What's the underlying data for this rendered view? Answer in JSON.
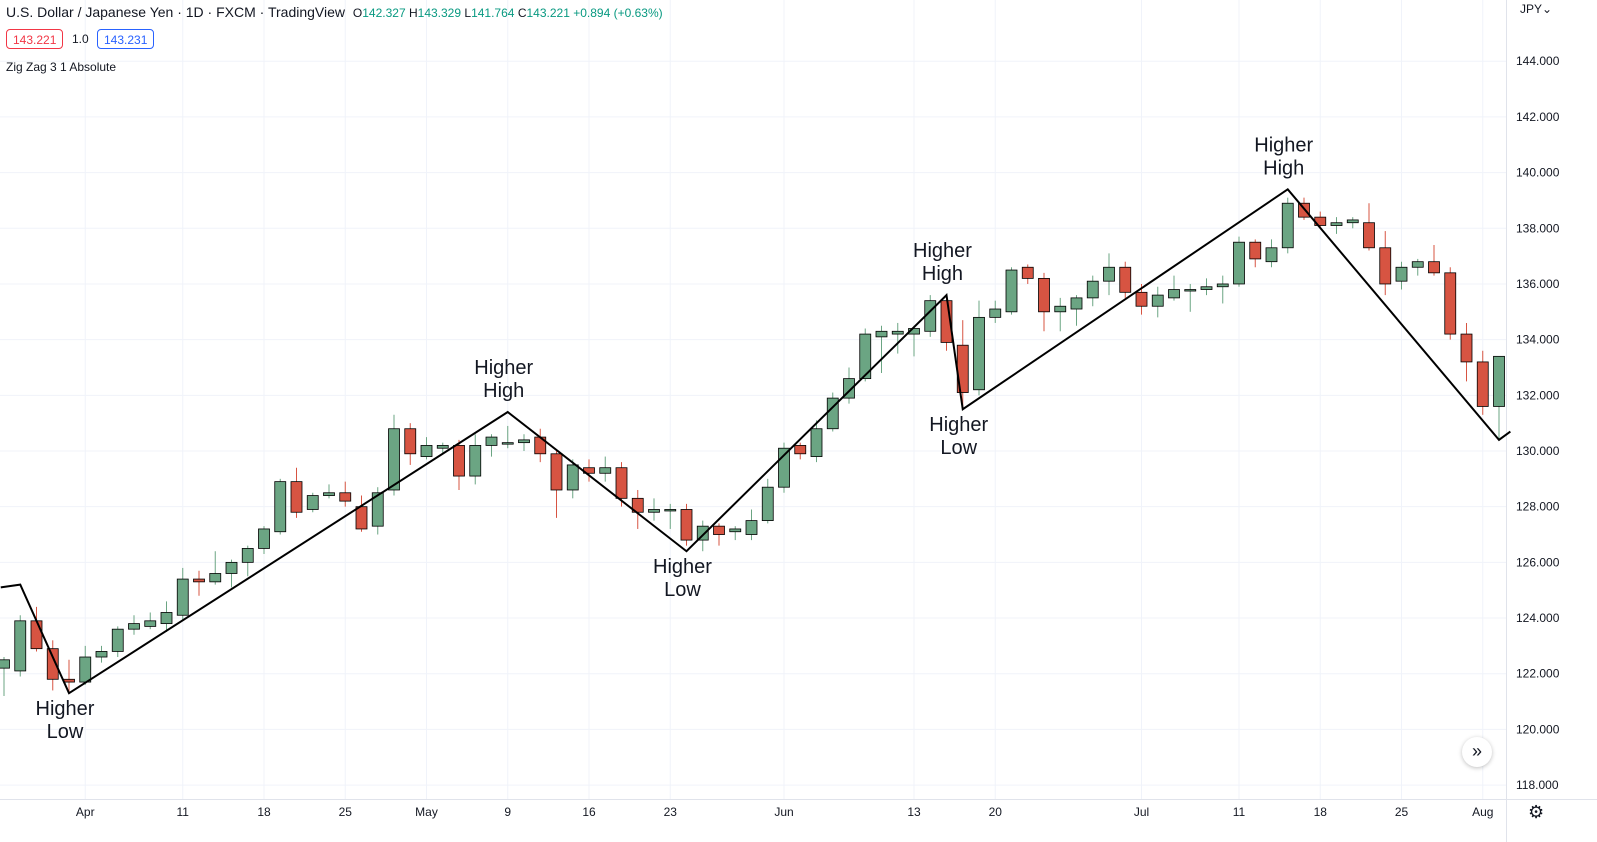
{
  "legend": {
    "symbol": "U.S. Dollar / Japanese Yen · 1D · FXCM · TradingView",
    "open_label": "O",
    "open": "142.327",
    "high_label": "H",
    "high": "143.329",
    "low_label": "L",
    "low": "141.764",
    "close_label": "C",
    "close": "143.221",
    "change": "+0.894 (+0.63%)",
    "bid": "143.221",
    "spread": "1.0",
    "ask": "143.231",
    "indicator": "Zig Zag 3 1 Absolute"
  },
  "axis": {
    "currency": "JPY"
  },
  "colors": {
    "up": "#6ba583",
    "down": "#d75442",
    "zigzag": "#000000",
    "grid": "#f0f3fa"
  },
  "icons": {
    "scroll": "double-chevron-right-icon",
    "settings": "gear-icon"
  },
  "chart_data": {
    "type": "candlestick",
    "ylim": [
      117.5,
      146.2
    ],
    "y_ticks": [
      "118.000",
      "120.000",
      "122.000",
      "124.000",
      "126.000",
      "128.000",
      "130.000",
      "132.000",
      "134.000",
      "136.000",
      "138.000",
      "140.000",
      "142.000",
      "144.000"
    ],
    "y_tick_values": [
      118,
      120,
      122,
      124,
      126,
      128,
      130,
      132,
      134,
      136,
      138,
      140,
      142,
      144
    ],
    "x_ticks": [
      {
        "label": "Apr",
        "index": 5
      },
      {
        "label": "11",
        "index": 11
      },
      {
        "label": "18",
        "index": 16
      },
      {
        "label": "25",
        "index": 21
      },
      {
        "label": "May",
        "index": 26
      },
      {
        "label": "9",
        "index": 31
      },
      {
        "label": "16",
        "index": 36
      },
      {
        "label": "23",
        "index": 41
      },
      {
        "label": "Jun",
        "index": 48
      },
      {
        "label": "13",
        "index": 56
      },
      {
        "label": "20",
        "index": 61
      },
      {
        "label": "Jul",
        "index": 70
      },
      {
        "label": "11",
        "index": 76
      },
      {
        "label": "18",
        "index": 81
      },
      {
        "label": "25",
        "index": 86
      },
      {
        "label": "Aug",
        "index": 91
      }
    ],
    "candles": [
      {
        "o": 122.2,
        "h": 122.6,
        "l": 121.2,
        "c": 122.5
      },
      {
        "o": 122.1,
        "h": 124.1,
        "l": 121.9,
        "c": 123.9
      },
      {
        "o": 123.9,
        "h": 124.4,
        "l": 122.8,
        "c": 122.9
      },
      {
        "o": 122.9,
        "h": 123.2,
        "l": 121.4,
        "c": 121.8
      },
      {
        "o": 121.8,
        "h": 122.5,
        "l": 121.3,
        "c": 121.7
      },
      {
        "o": 121.7,
        "h": 123.0,
        "l": 121.6,
        "c": 122.6
      },
      {
        "o": 122.6,
        "h": 123.0,
        "l": 122.4,
        "c": 122.8
      },
      {
        "o": 122.8,
        "h": 123.7,
        "l": 122.6,
        "c": 123.6
      },
      {
        "o": 123.6,
        "h": 124.1,
        "l": 123.4,
        "c": 123.8
      },
      {
        "o": 123.7,
        "h": 124.2,
        "l": 123.6,
        "c": 123.9
      },
      {
        "o": 123.8,
        "h": 124.6,
        "l": 123.5,
        "c": 124.2
      },
      {
        "o": 124.1,
        "h": 125.8,
        "l": 123.9,
        "c": 125.4
      },
      {
        "o": 125.4,
        "h": 125.7,
        "l": 124.8,
        "c": 125.3
      },
      {
        "o": 125.3,
        "h": 126.4,
        "l": 125.2,
        "c": 125.6
      },
      {
        "o": 125.6,
        "h": 126.1,
        "l": 125.1,
        "c": 126.0
      },
      {
        "o": 126.0,
        "h": 126.6,
        "l": 125.5,
        "c": 126.5
      },
      {
        "o": 126.5,
        "h": 127.3,
        "l": 126.3,
        "c": 127.2
      },
      {
        "o": 127.1,
        "h": 129.0,
        "l": 127.0,
        "c": 128.9
      },
      {
        "o": 128.9,
        "h": 129.4,
        "l": 127.6,
        "c": 127.8
      },
      {
        "o": 127.9,
        "h": 128.5,
        "l": 127.8,
        "c": 128.4
      },
      {
        "o": 128.4,
        "h": 128.8,
        "l": 128.3,
        "c": 128.5
      },
      {
        "o": 128.5,
        "h": 128.9,
        "l": 128.0,
        "c": 128.2
      },
      {
        "o": 128.0,
        "h": 128.4,
        "l": 127.1,
        "c": 127.2
      },
      {
        "o": 127.3,
        "h": 128.7,
        "l": 127.0,
        "c": 128.5
      },
      {
        "o": 128.6,
        "h": 131.3,
        "l": 128.4,
        "c": 130.8
      },
      {
        "o": 130.8,
        "h": 131.0,
        "l": 129.5,
        "c": 129.9
      },
      {
        "o": 129.8,
        "h": 130.5,
        "l": 129.7,
        "c": 130.2
      },
      {
        "o": 130.1,
        "h": 130.3,
        "l": 129.9,
        "c": 130.2
      },
      {
        "o": 130.2,
        "h": 130.4,
        "l": 128.6,
        "c": 129.1
      },
      {
        "o": 129.1,
        "h": 130.6,
        "l": 128.8,
        "c": 130.2
      },
      {
        "o": 130.2,
        "h": 130.6,
        "l": 129.8,
        "c": 130.5
      },
      {
        "o": 130.3,
        "h": 130.9,
        "l": 130.1,
        "c": 130.3
      },
      {
        "o": 130.3,
        "h": 130.6,
        "l": 130.0,
        "c": 130.4
      },
      {
        "o": 130.5,
        "h": 130.8,
        "l": 129.6,
        "c": 129.9
      },
      {
        "o": 129.9,
        "h": 130.0,
        "l": 127.6,
        "c": 128.6
      },
      {
        "o": 128.6,
        "h": 129.7,
        "l": 128.3,
        "c": 129.5
      },
      {
        "o": 129.4,
        "h": 129.7,
        "l": 128.9,
        "c": 129.2
      },
      {
        "o": 129.2,
        "h": 129.8,
        "l": 128.9,
        "c": 129.4
      },
      {
        "o": 129.4,
        "h": 129.6,
        "l": 128.0,
        "c": 128.3
      },
      {
        "o": 128.3,
        "h": 128.6,
        "l": 127.2,
        "c": 127.8
      },
      {
        "o": 127.8,
        "h": 128.3,
        "l": 127.5,
        "c": 127.9
      },
      {
        "o": 127.9,
        "h": 128.1,
        "l": 127.2,
        "c": 127.9
      },
      {
        "o": 127.9,
        "h": 128.1,
        "l": 126.6,
        "c": 126.8
      },
      {
        "o": 126.8,
        "h": 127.5,
        "l": 126.4,
        "c": 127.3
      },
      {
        "o": 127.3,
        "h": 127.4,
        "l": 126.6,
        "c": 127.0
      },
      {
        "o": 127.1,
        "h": 127.3,
        "l": 126.8,
        "c": 127.2
      },
      {
        "o": 127.0,
        "h": 127.9,
        "l": 126.8,
        "c": 127.5
      },
      {
        "o": 127.5,
        "h": 129.0,
        "l": 127.4,
        "c": 128.7
      },
      {
        "o": 128.7,
        "h": 130.3,
        "l": 128.5,
        "c": 130.1
      },
      {
        "o": 130.2,
        "h": 130.3,
        "l": 129.7,
        "c": 129.9
      },
      {
        "o": 129.8,
        "h": 131.1,
        "l": 129.6,
        "c": 130.8
      },
      {
        "o": 130.8,
        "h": 132.1,
        "l": 130.7,
        "c": 131.9
      },
      {
        "o": 131.9,
        "h": 133.0,
        "l": 131.7,
        "c": 132.6
      },
      {
        "o": 132.6,
        "h": 134.4,
        "l": 132.5,
        "c": 134.2
      },
      {
        "o": 134.1,
        "h": 134.5,
        "l": 132.8,
        "c": 134.3
      },
      {
        "o": 134.2,
        "h": 134.6,
        "l": 133.5,
        "c": 134.3
      },
      {
        "o": 134.2,
        "h": 134.5,
        "l": 133.4,
        "c": 134.4
      },
      {
        "o": 134.3,
        "h": 135.6,
        "l": 134.1,
        "c": 135.4
      },
      {
        "o": 135.4,
        "h": 135.6,
        "l": 133.6,
        "c": 133.9
      },
      {
        "o": 133.8,
        "h": 134.7,
        "l": 131.5,
        "c": 132.1
      },
      {
        "o": 132.2,
        "h": 135.4,
        "l": 132.0,
        "c": 134.8
      },
      {
        "o": 134.8,
        "h": 135.4,
        "l": 134.6,
        "c": 135.1
      },
      {
        "o": 135.0,
        "h": 136.6,
        "l": 134.9,
        "c": 136.5
      },
      {
        "o": 136.6,
        "h": 136.7,
        "l": 136.0,
        "c": 136.2
      },
      {
        "o": 136.2,
        "h": 136.4,
        "l": 134.3,
        "c": 135.0
      },
      {
        "o": 135.0,
        "h": 135.5,
        "l": 134.3,
        "c": 135.2
      },
      {
        "o": 135.1,
        "h": 135.6,
        "l": 134.5,
        "c": 135.5
      },
      {
        "o": 135.5,
        "h": 136.3,
        "l": 135.2,
        "c": 136.1
      },
      {
        "o": 136.1,
        "h": 137.1,
        "l": 135.6,
        "c": 136.6
      },
      {
        "o": 136.6,
        "h": 136.8,
        "l": 135.5,
        "c": 135.7
      },
      {
        "o": 135.7,
        "h": 136.0,
        "l": 134.9,
        "c": 135.2
      },
      {
        "o": 135.2,
        "h": 135.9,
        "l": 134.8,
        "c": 135.6
      },
      {
        "o": 135.5,
        "h": 136.3,
        "l": 135.4,
        "c": 135.8
      },
      {
        "o": 135.8,
        "h": 136.0,
        "l": 135.0,
        "c": 135.8
      },
      {
        "o": 135.8,
        "h": 136.2,
        "l": 135.6,
        "c": 135.9
      },
      {
        "o": 135.9,
        "h": 136.3,
        "l": 135.3,
        "c": 136.0
      },
      {
        "o": 136.0,
        "h": 137.7,
        "l": 135.9,
        "c": 137.5
      },
      {
        "o": 137.5,
        "h": 137.6,
        "l": 136.6,
        "c": 136.9
      },
      {
        "o": 136.8,
        "h": 137.6,
        "l": 136.6,
        "c": 137.3
      },
      {
        "o": 137.3,
        "h": 139.1,
        "l": 137.1,
        "c": 138.9
      },
      {
        "o": 138.9,
        "h": 139.1,
        "l": 138.3,
        "c": 138.4
      },
      {
        "o": 138.4,
        "h": 138.6,
        "l": 138.0,
        "c": 138.1
      },
      {
        "o": 138.1,
        "h": 138.4,
        "l": 137.8,
        "c": 138.2
      },
      {
        "o": 138.2,
        "h": 138.4,
        "l": 138.0,
        "c": 138.3
      },
      {
        "o": 138.2,
        "h": 138.9,
        "l": 137.2,
        "c": 137.3
      },
      {
        "o": 137.3,
        "h": 137.9,
        "l": 135.6,
        "c": 136.0
      },
      {
        "o": 136.1,
        "h": 136.8,
        "l": 135.8,
        "c": 136.6
      },
      {
        "o": 136.6,
        "h": 136.9,
        "l": 136.3,
        "c": 136.8
      },
      {
        "o": 136.8,
        "h": 137.4,
        "l": 136.3,
        "c": 136.4
      },
      {
        "o": 136.4,
        "h": 136.6,
        "l": 134.0,
        "c": 134.2
      },
      {
        "o": 134.2,
        "h": 134.6,
        "l": 132.5,
        "c": 133.2
      },
      {
        "o": 133.2,
        "h": 133.6,
        "l": 131.3,
        "c": 131.6
      },
      {
        "o": 131.6,
        "h": 133.4,
        "l": 130.4,
        "c": 133.4
      }
    ],
    "zigzag": [
      {
        "i": -0.2,
        "p": 125.1
      },
      {
        "i": 1.0,
        "p": 125.2
      },
      {
        "i": 4.0,
        "p": 121.3
      },
      {
        "i": 31.0,
        "p": 131.4
      },
      {
        "i": 42.0,
        "p": 126.4
      },
      {
        "i": 58.0,
        "p": 135.6
      },
      {
        "i": 59.0,
        "p": 131.5
      },
      {
        "i": 79.0,
        "p": 139.4
      },
      {
        "i": 92.0,
        "p": 130.4
      },
      {
        "i": 92.7,
        "p": 130.7
      }
    ],
    "annotations": [
      {
        "line1": "Higher",
        "line2": "Low",
        "i": 4.0,
        "p": 121.3,
        "pos": "below"
      },
      {
        "line1": "Higher",
        "line2": "High",
        "i": 31.0,
        "p": 131.4,
        "pos": "above"
      },
      {
        "line1": "Higher",
        "line2": "Low",
        "i": 42.0,
        "p": 126.4,
        "pos": "below"
      },
      {
        "line1": "Higher",
        "line2": "High",
        "i": 58.0,
        "p": 135.6,
        "pos": "above"
      },
      {
        "line1": "Higher",
        "line2": "Low",
        "i": 59.0,
        "p": 131.5,
        "pos": "below"
      },
      {
        "line1": "Higher",
        "line2": "High",
        "i": 79.0,
        "p": 139.4,
        "pos": "above"
      }
    ]
  }
}
